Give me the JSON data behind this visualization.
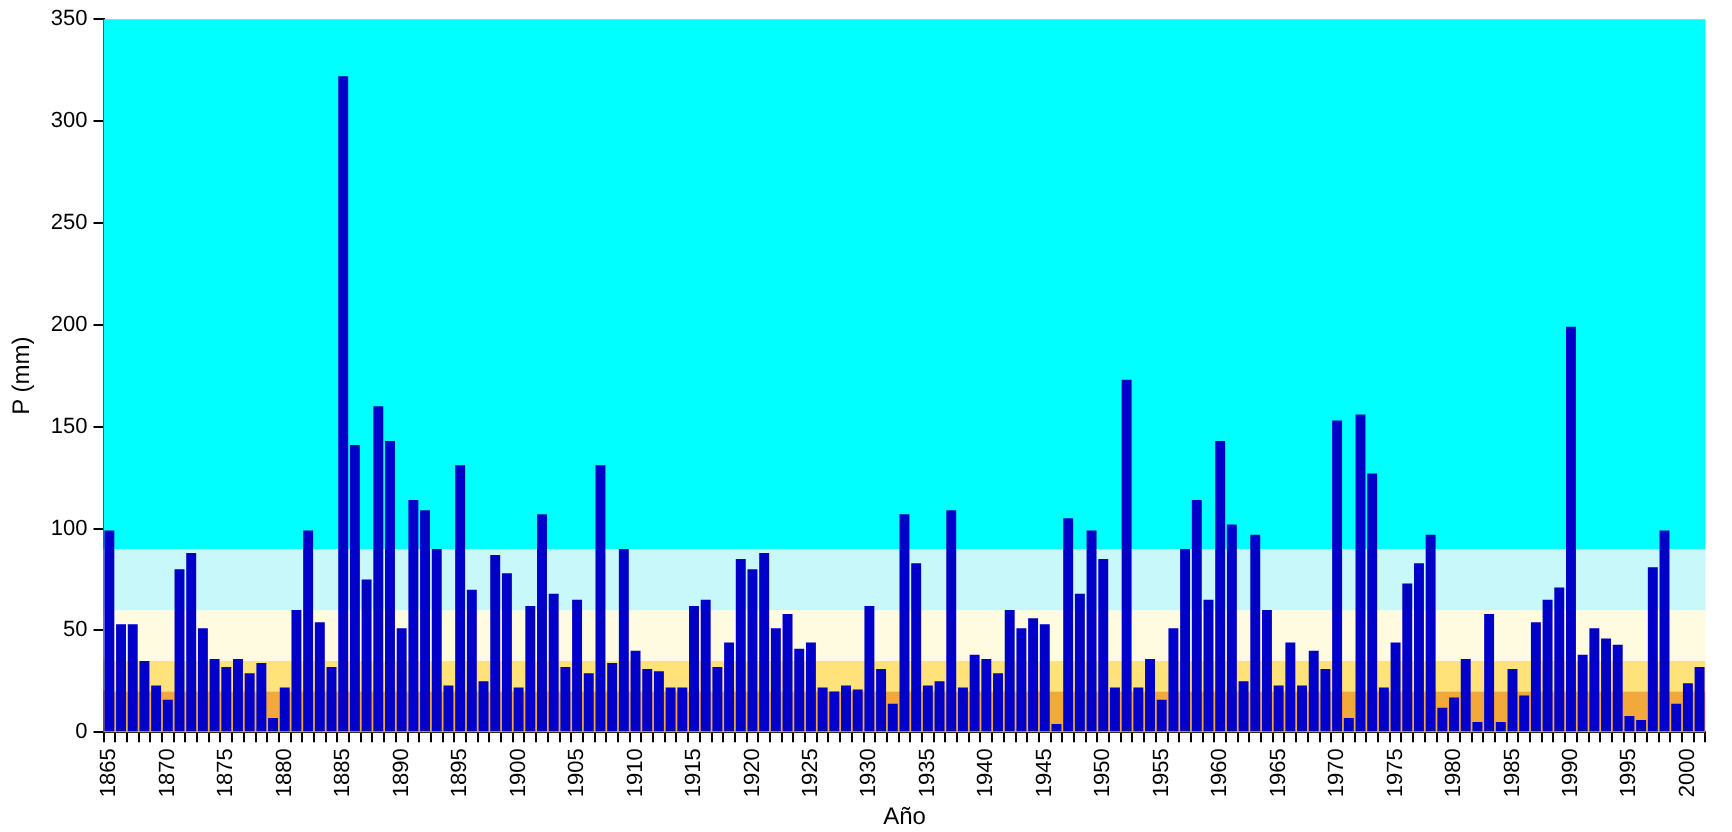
{
  "chart_data": {
    "type": "bar",
    "xlabel": "Año",
    "ylabel": "P (mm)",
    "categories": [
      "1865",
      null,
      null,
      null,
      null,
      "1870",
      null,
      null,
      null,
      null,
      "1875",
      null,
      null,
      null,
      null,
      "1880",
      null,
      null,
      null,
      null,
      "1885",
      null,
      null,
      null,
      null,
      "1890",
      null,
      null,
      null,
      null,
      "1895",
      null,
      null,
      null,
      null,
      "1900",
      null,
      null,
      null,
      null,
      "1905",
      null,
      null,
      null,
      null,
      "1910",
      null,
      null,
      null,
      null,
      "1915",
      null,
      null,
      null,
      null,
      "1920",
      null,
      null,
      null,
      null,
      "1925",
      null,
      null,
      null,
      null,
      "1930",
      null,
      null,
      null,
      null,
      "1935",
      null,
      null,
      null,
      null,
      "1940",
      null,
      null,
      null,
      null,
      "1945",
      null,
      null,
      null,
      null,
      "1950",
      null,
      null,
      null,
      null,
      "1955",
      null,
      null,
      null,
      null,
      "1960",
      null,
      null,
      null,
      null,
      "1965",
      null,
      null,
      null,
      null,
      "1970",
      null,
      null,
      null,
      null,
      "1975",
      null,
      null,
      null,
      null,
      "1980",
      null,
      null,
      null,
      null,
      "1985",
      null,
      null,
      null,
      null,
      "1990",
      null,
      null,
      null,
      null,
      "1995",
      null,
      null,
      null,
      null,
      "2000",
      null
    ],
    "values": [
      99,
      53,
      53,
      35,
      23,
      16,
      80,
      88,
      51,
      36,
      32,
      36,
      29,
      34,
      7,
      22,
      60,
      99,
      54,
      32,
      322,
      141,
      75,
      160,
      143,
      51,
      114,
      109,
      90,
      23,
      131,
      70,
      25,
      87,
      78,
      22,
      62,
      107,
      68,
      32,
      65,
      29,
      131,
      34,
      90,
      40,
      31,
      30,
      22,
      22,
      62,
      65,
      32,
      44,
      85,
      80,
      88,
      51,
      58,
      41,
      44,
      22,
      20,
      23,
      21,
      62,
      31,
      14,
      107,
      83,
      23,
      25,
      109,
      22,
      38,
      36,
      29,
      60,
      51,
      56,
      53,
      4,
      105,
      68,
      99,
      85,
      22,
      173,
      22,
      36,
      16,
      51,
      90,
      114,
      65,
      143,
      102,
      25,
      97,
      60,
      23,
      44,
      23,
      40,
      31,
      153,
      7,
      156,
      127,
      22,
      44,
      73,
      83,
      97,
      12,
      17,
      36,
      5,
      58,
      5,
      31,
      18,
      54,
      65,
      71,
      199,
      38,
      51,
      46,
      43,
      8,
      6,
      81,
      99,
      14,
      24,
      32
    ],
    "color": "#0000c8",
    "ylim": [
      0,
      350
    ],
    "yticks": [
      0,
      50,
      100,
      150,
      200,
      250,
      300,
      350
    ],
    "grid": false,
    "bands": [
      {
        "axis": "y",
        "from": 90,
        "to": 350,
        "color": "#00ffff"
      },
      {
        "axis": "y",
        "from": 60,
        "to": 90,
        "color": "#c8f8fa"
      },
      {
        "axis": "y",
        "from": 35,
        "to": 60,
        "color": "#fffbe0"
      },
      {
        "axis": "y",
        "from": 20,
        "to": 35,
        "color": "#ffe27a"
      },
      {
        "axis": "y",
        "from": 0,
        "to": 20,
        "color": "#f2a83a"
      }
    ]
  }
}
